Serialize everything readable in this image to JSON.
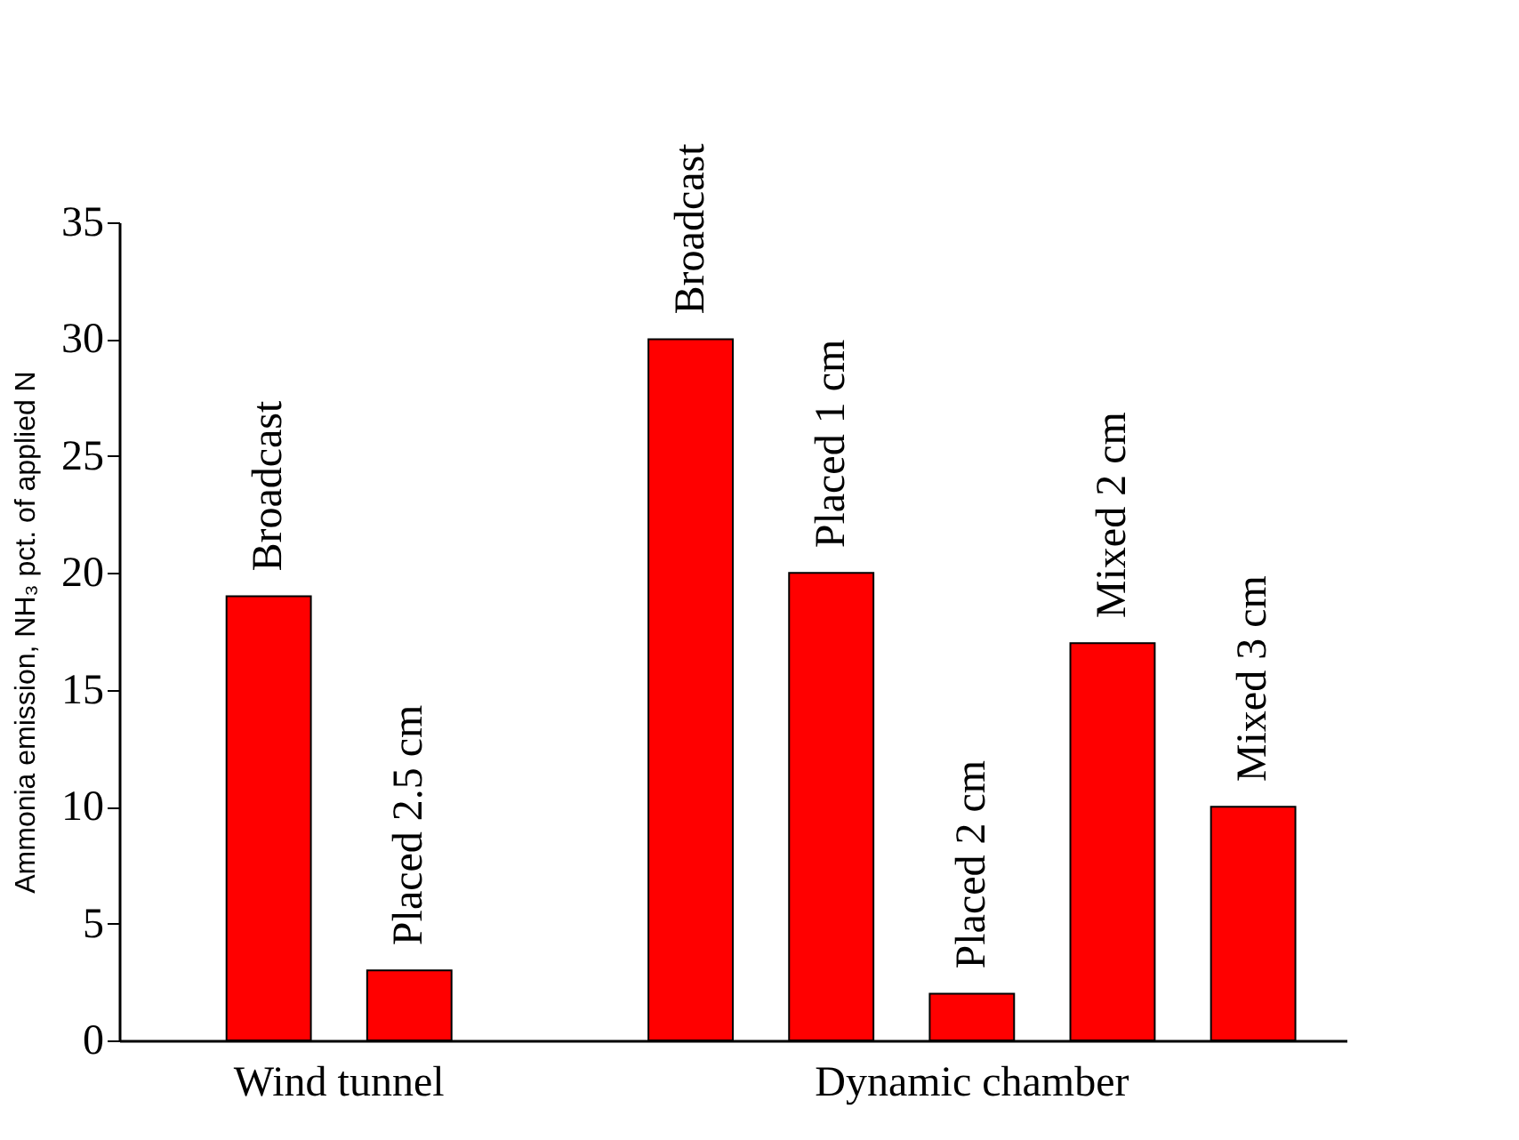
{
  "chart_data": {
    "type": "bar",
    "ylabel": "Ammonia emission, NH₃ pct. of applied N",
    "categories": [
      "Broadcast",
      "Placed 2.5 cm",
      null,
      "Broadcast",
      "Placed 1 cm",
      "Placed 2 cm",
      "Mixed 2 cm",
      "Mixed 3 cm"
    ],
    "values": [
      19,
      3,
      null,
      30,
      20,
      2,
      17,
      10
    ],
    "color": "#ff0000",
    "ylim": [
      0,
      35
    ],
    "yticks": [
      0,
      5,
      10,
      15,
      20,
      25,
      30,
      35
    ],
    "grid": false,
    "annotations": [
      "Wind tunnel",
      "Dynamic chamber"
    ]
  }
}
